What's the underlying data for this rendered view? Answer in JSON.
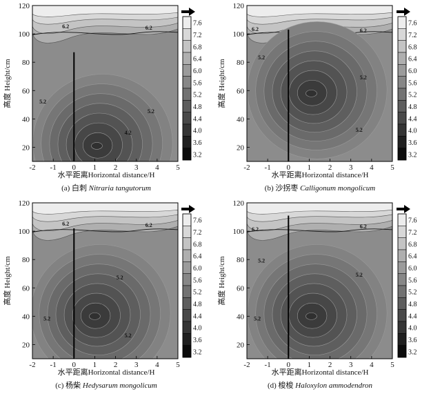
{
  "colormap": {
    "low": "#0c0c0c",
    "high": "#f7f7f7"
  },
  "chart_data": [
    {
      "type": "contour",
      "caption_prefix": "(a) 白刺",
      "caption_species": "Nitraria tangutorum",
      "xlabel": "水平距离Horizontal distance/H",
      "ylabel": "高度 Height/cm",
      "xlim": [
        -2,
        5
      ],
      "ylim": [
        10,
        120
      ],
      "x_ticks": [
        "-2",
        "-1",
        "0",
        "1",
        "2",
        "3",
        "4",
        "5"
      ],
      "y_ticks": [
        "20",
        "40",
        "60",
        "80",
        "100",
        "120"
      ],
      "colorbar_ticks": [
        "7.6",
        "7.2",
        "6.8",
        "6.4",
        "6.0",
        "5.6",
        "5.2",
        "4.8",
        "4.4",
        "4.0",
        "3.6",
        "3.2"
      ],
      "colorbar_range": [
        3.2,
        7.8
      ],
      "wind_direction": "right",
      "shrub_height": 87,
      "contour_labels": [
        {
          "text": "6.2",
          "x": -0.4,
          "y": 104
        },
        {
          "text": "6.2",
          "x": 3.6,
          "y": 103
        },
        {
          "text": "5.2",
          "x": -1.5,
          "y": 51
        },
        {
          "text": "5.2",
          "x": 3.7,
          "y": 44
        },
        {
          "text": "4.2",
          "x": 2.6,
          "y": 29
        }
      ],
      "min_center": {
        "x": 1.1,
        "y": 21
      },
      "background_value": 5.7
    },
    {
      "type": "contour",
      "caption_prefix": "(b) 沙拐枣",
      "caption_species": "Calligonum mongolicum",
      "xlabel": "水平距离Horizontal distance/H",
      "ylabel": "高度 Height/cm",
      "xlim": [
        -2,
        5
      ],
      "ylim": [
        10,
        120
      ],
      "x_ticks": [
        "-2",
        "-1",
        "0",
        "1",
        "2",
        "3",
        "4",
        "5"
      ],
      "y_ticks": [
        "20",
        "40",
        "60",
        "80",
        "100",
        "120"
      ],
      "colorbar_ticks": [
        "7.6",
        "7.2",
        "6.8",
        "6.4",
        "6.0",
        "5.6",
        "5.2",
        "4.8",
        "4.4",
        "4.0",
        "3.6",
        "3.2"
      ],
      "colorbar_range": [
        3.2,
        7.8
      ],
      "wind_direction": "right",
      "shrub_height": 103,
      "contour_labels": [
        {
          "text": "6.2",
          "x": -1.6,
          "y": 102
        },
        {
          "text": "6.2",
          "x": 3.6,
          "y": 101
        },
        {
          "text": "5.2",
          "x": -1.3,
          "y": 82
        },
        {
          "text": "5.2",
          "x": 3.6,
          "y": 68
        },
        {
          "text": "5.2",
          "x": 3.4,
          "y": 31
        }
      ],
      "min_center": {
        "x": 1.1,
        "y": 58
      },
      "background_value": 5.7
    },
    {
      "type": "contour",
      "caption_prefix": "(c) 杨柴",
      "caption_species": "Hedysarum mongolicum",
      "xlabel": "水平距离Horizontal distance/H",
      "ylabel": "高度 Height/cm",
      "xlim": [
        -2,
        5
      ],
      "ylim": [
        10,
        120
      ],
      "x_ticks": [
        "-2",
        "-1",
        "0",
        "1",
        "2",
        "3",
        "4",
        "5"
      ],
      "y_ticks": [
        "20",
        "40",
        "60",
        "80",
        "100",
        "120"
      ],
      "colorbar_ticks": [
        "7.6",
        "7.2",
        "6.8",
        "6.4",
        "6.0",
        "5.6",
        "5.2",
        "4.8",
        "4.4",
        "4.0",
        "3.6",
        "3.2"
      ],
      "colorbar_range": [
        3.2,
        7.8
      ],
      "wind_direction": "right",
      "shrub_height": 102,
      "contour_labels": [
        {
          "text": "6.2",
          "x": -0.4,
          "y": 104
        },
        {
          "text": "6.2",
          "x": 3.6,
          "y": 103
        },
        {
          "text": "5.2",
          "x": 2.2,
          "y": 66
        },
        {
          "text": "5.2",
          "x": -1.3,
          "y": 37
        },
        {
          "text": "5.2",
          "x": 2.6,
          "y": 25
        }
      ],
      "min_center": {
        "x": 1.0,
        "y": 40
      },
      "background_value": 5.7
    },
    {
      "type": "contour",
      "caption_prefix": "(d) 梭梭",
      "caption_species": "Haloxylon ammodendron",
      "xlabel": "水平距离Horizontal distance/H",
      "ylabel": "高度 Height/cm",
      "xlim": [
        -2,
        5
      ],
      "ylim": [
        10,
        120
      ],
      "x_ticks": [
        "-2",
        "-1",
        "0",
        "1",
        "2",
        "3",
        "4",
        "5"
      ],
      "y_ticks": [
        "20",
        "40",
        "60",
        "80",
        "100",
        "120"
      ],
      "colorbar_ticks": [
        "7.6",
        "7.2",
        "6.8",
        "6.4",
        "6.0",
        "5.6",
        "5.2",
        "4.8",
        "4.4",
        "4.0",
        "3.6",
        "3.2"
      ],
      "colorbar_range": [
        3.2,
        7.8
      ],
      "wind_direction": "right",
      "shrub_height": 111,
      "contour_labels": [
        {
          "text": "6.2",
          "x": -1.6,
          "y": 100
        },
        {
          "text": "6.2",
          "x": 3.6,
          "y": 102
        },
        {
          "text": "5.2",
          "x": -1.3,
          "y": 78
        },
        {
          "text": "5.2",
          "x": 3.4,
          "y": 68
        },
        {
          "text": "5.2",
          "x": -1.5,
          "y": 37
        }
      ],
      "min_center": {
        "x": 1.1,
        "y": 40
      },
      "background_value": 5.7
    }
  ]
}
